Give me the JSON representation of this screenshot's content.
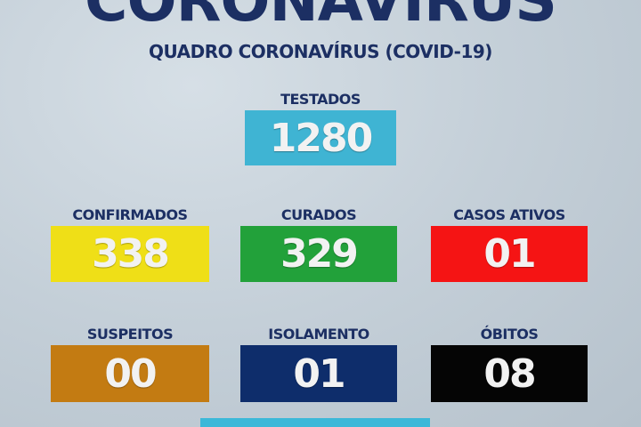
{
  "title": "CORONAVÍRUS",
  "subtitle": "QUADRO CORONAVÍRUS (COVID-19)",
  "stats": [
    {
      "label": "TESTADOS",
      "value": "1280",
      "color": "#3fb4d3"
    },
    {
      "label": "CONFIRMADOS",
      "value": "338",
      "color": "#efdf17"
    },
    {
      "label": "CURADOS",
      "value": "329",
      "color": "#22a13a"
    },
    {
      "label": "CASOS ATIVOS",
      "value": "01",
      "color": "#f51414"
    },
    {
      "label": "SUSPEITOS",
      "value": "00",
      "color": "#c37b12"
    },
    {
      "label": "ISOLAMENTO",
      "value": "01",
      "color": "#0e2d6b"
    },
    {
      "label": "ÓBITOS",
      "value": "08",
      "color": "#050505"
    }
  ],
  "footer_bar_color": "#3cb8d8"
}
